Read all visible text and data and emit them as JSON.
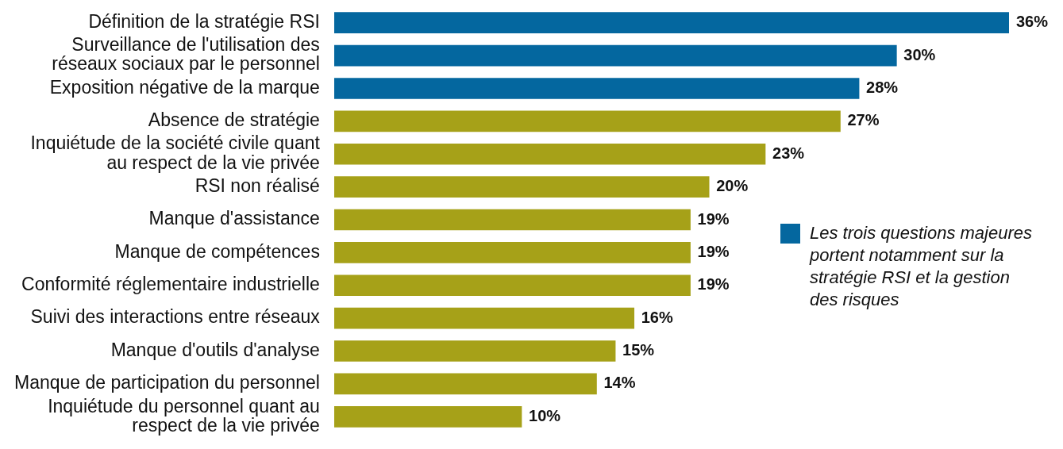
{
  "chart_data": {
    "type": "bar",
    "orientation": "horizontal",
    "categories": [
      "Définition de la stratégie RSI",
      "Surveillance de l'utilisation des réseaux sociaux par le personnel",
      "Exposition négative de la marque",
      "Absence de stratégie",
      "Inquiétude de la société civile quant au respect de la vie privée",
      "RSI non réalisé",
      "Manque d'assistance",
      "Manque de compétences",
      "Conformité réglementaire industrielle",
      "Suivi des interactions entre réseaux",
      "Manque d'outils d'analyse",
      "Manque de participation du personnel",
      "Inquiétude du personnel quant au respect de la vie privée"
    ],
    "series": [
      {
        "name": "Les trois questions majeures portent notamment sur la stratégie RSI et la gestion des risques",
        "color": "#04679f",
        "values": [
          36,
          30,
          28,
          null,
          null,
          null,
          null,
          null,
          null,
          null,
          null,
          null,
          null
        ],
        "value_labels": [
          "36%",
          "30%",
          "28%",
          null,
          null,
          null,
          null,
          null,
          null,
          null,
          null,
          null,
          null
        ]
      },
      {
        "color": "#a6a118",
        "values": [
          null,
          null,
          null,
          27,
          23,
          20,
          19,
          19,
          19,
          16,
          15,
          14,
          10
        ],
        "value_labels": [
          null,
          null,
          null,
          "27%",
          "23%",
          "20%",
          "19%",
          "19%",
          "19%",
          "16%",
          "15%",
          "14%",
          "10%"
        ]
      }
    ],
    "xlim": [
      0,
      36
    ],
    "legend": "right"
  }
}
